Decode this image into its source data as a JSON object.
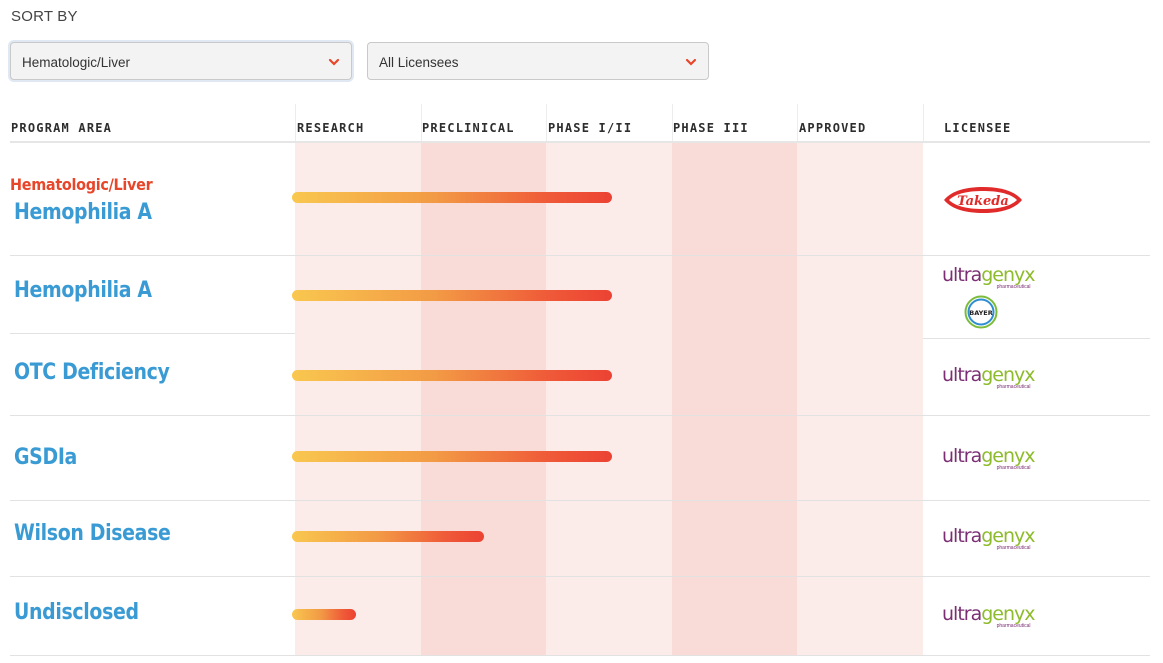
{
  "sort_label": "SORT BY",
  "filters": {
    "program_area": "Hematologic/Liver",
    "licensee": "All Licensees"
  },
  "columns": {
    "program_area": "PROGRAM AREA",
    "research": "RESEARCH",
    "preclinical": "PRECLINICAL",
    "phase1": "PHASE I/II",
    "phase3": "PHASE III",
    "approved": "APPROVED",
    "licensee": "LICENSEE"
  },
  "category": "Hematologic/Liver",
  "rows": [
    {
      "name": "Hemophilia A",
      "stage_progress": 1.0,
      "licensee": "Takeda"
    },
    {
      "name": "Hemophilia A",
      "stage_progress": 1.0,
      "licensee": "Ultragenyx / Bayer"
    },
    {
      "name": "OTC Deficiency",
      "stage_progress": 1.0,
      "licensee": "Ultragenyx"
    },
    {
      "name": "GSDIa",
      "stage_progress": 1.0,
      "licensee": "Ultragenyx"
    },
    {
      "name": "Wilson Disease",
      "stage_progress": 0.6,
      "licensee": "Ultragenyx"
    },
    {
      "name": "Undisclosed",
      "stage_progress": 0.2,
      "licensee": "Ultragenyx"
    }
  ],
  "logos": {
    "takeda": "Takeda",
    "ultragenyx_u": "ultra",
    "ultragenyx_g": "genyx",
    "ultragenyx_sub": "pharmaceutical",
    "bayer": "BAYER"
  },
  "colors": {
    "category_red": "#e8462a",
    "program_blue": "#3a9bd4",
    "column_light": "#fbecea",
    "column_dark": "#f9dbd8"
  }
}
